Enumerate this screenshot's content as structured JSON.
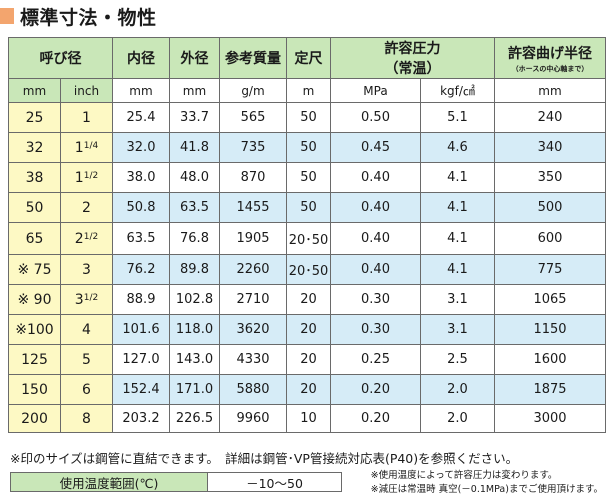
{
  "title": "標準寸法・物性",
  "headers": {
    "yobi_kei": "呼び径",
    "naikei": "内径",
    "gaikei": "外径",
    "sanko_shitsuryo": "参考質量",
    "teishaku": "定尺",
    "kyoyo_atsuryoku": "許容圧力",
    "kyoyo_atsuryoku_sub": "（常温）",
    "kyoyo_mage": "許容曲げ半径",
    "kyoyo_mage_sub": "（ホースの中心軸まで）"
  },
  "units": {
    "mm": "mm",
    "inch": "inch",
    "naikei": "mm",
    "gaikei": "mm",
    "mass": "g/m",
    "length": "m",
    "mpa": "MPa",
    "kgf": "kgf/㎠",
    "radius": "mm"
  },
  "rows": [
    {
      "mm": "25",
      "inch_whole": "1",
      "inch_frac": "",
      "id": "25.4",
      "od": "33.7",
      "mass": "565",
      "len": "50",
      "mpa": "0.50",
      "kgf": "5.1",
      "radius": "240"
    },
    {
      "mm": "32",
      "inch_whole": "1",
      "inch_frac": "1/4",
      "id": "32.0",
      "od": "41.8",
      "mass": "735",
      "len": "50",
      "mpa": "0.45",
      "kgf": "4.6",
      "radius": "340"
    },
    {
      "mm": "38",
      "inch_whole": "1",
      "inch_frac": "1/2",
      "id": "38.0",
      "od": "48.0",
      "mass": "870",
      "len": "50",
      "mpa": "0.40",
      "kgf": "4.1",
      "radius": "350"
    },
    {
      "mm": "50",
      "inch_whole": "2",
      "inch_frac": "",
      "id": "50.8",
      "od": "63.5",
      "mass": "1455",
      "len": "50",
      "mpa": "0.40",
      "kgf": "4.1",
      "radius": "500"
    },
    {
      "mm": "65",
      "inch_whole": "2",
      "inch_frac": "1/2",
      "id": "63.5",
      "od": "76.8",
      "mass": "1905",
      "len": "20･50",
      "mpa": "0.40",
      "kgf": "4.1",
      "radius": "600"
    },
    {
      "mm": "※ 75",
      "inch_whole": "3",
      "inch_frac": "",
      "id": "76.2",
      "od": "89.8",
      "mass": "2260",
      "len": "20･50",
      "mpa": "0.40",
      "kgf": "4.1",
      "radius": "775"
    },
    {
      "mm": "※ 90",
      "inch_whole": "3",
      "inch_frac": "1/2",
      "id": "88.9",
      "od": "102.8",
      "mass": "2710",
      "len": "20",
      "mpa": "0.30",
      "kgf": "3.1",
      "radius": "1065"
    },
    {
      "mm": "※100",
      "inch_whole": "4",
      "inch_frac": "",
      "id": "101.6",
      "od": "118.0",
      "mass": "3620",
      "len": "20",
      "mpa": "0.30",
      "kgf": "3.1",
      "radius": "1150"
    },
    {
      "mm": "125",
      "inch_whole": "5",
      "inch_frac": "",
      "id": "127.0",
      "od": "143.0",
      "mass": "4330",
      "len": "20",
      "mpa": "0.25",
      "kgf": "2.5",
      "radius": "1600"
    },
    {
      "mm": "150",
      "inch_whole": "6",
      "inch_frac": "",
      "id": "152.4",
      "od": "171.0",
      "mass": "5880",
      "len": "20",
      "mpa": "0.20",
      "kgf": "2.0",
      "radius": "1875"
    },
    {
      "mm": "200",
      "inch_whole": "8",
      "inch_frac": "",
      "id": "203.2",
      "od": "226.5",
      "mass": "9960",
      "len": "10",
      "mpa": "0.20",
      "kgf": "2.0",
      "radius": "3000"
    }
  ],
  "notes": {
    "line1": "※印のサイズは鋼管に直結できます。　詳細は鋼管･VP管接続対応表(P40)を参照ください。",
    "temp_label": "使用温度範囲(℃)",
    "temp_value": "－10～50",
    "right1": "※使用温度によって許容圧力は変わります。",
    "right2": "※減圧は常温時 真空(－0.1MPa)までご使用頂けます。"
  },
  "colors": {
    "header_green": "#c9e7b8",
    "size_yellow": "#fdf9c4",
    "row_blue": "#d6ecf7",
    "title_mark": "#f3a56e"
  }
}
